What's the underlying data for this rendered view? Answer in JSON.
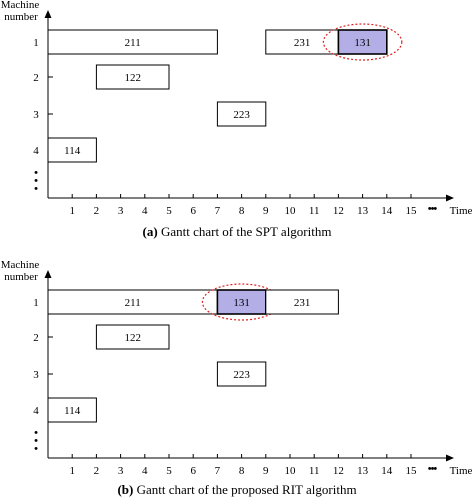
{
  "chart_data": [
    {
      "type": "gantt",
      "y_title": [
        "Machine",
        "number"
      ],
      "x_title": "Time",
      "x_ticks": [
        "1",
        "2",
        "3",
        "4",
        "5",
        "6",
        "7",
        "8",
        "9",
        "10",
        "11",
        "12",
        "13",
        "14",
        "15"
      ],
      "x_more": "•••",
      "machines": [
        "1",
        "2",
        "3",
        "4"
      ],
      "more_machines": "•\n•\n•",
      "bars": [
        {
          "machine": "1",
          "start": 0,
          "end": 7,
          "label": "211",
          "highlight": false
        },
        {
          "machine": "1",
          "start": 9,
          "end": 12,
          "label": "231",
          "highlight": false
        },
        {
          "machine": "1",
          "start": 12,
          "end": 14,
          "label": "131",
          "highlight": true
        },
        {
          "machine": "2",
          "start": 2,
          "end": 5,
          "label": "122",
          "highlight": false
        },
        {
          "machine": "3",
          "start": 7,
          "end": 9,
          "label": "223",
          "highlight": false
        },
        {
          "machine": "4",
          "start": 0,
          "end": 2,
          "label": "114",
          "highlight": false
        }
      ],
      "caption_prefix": "(a)",
      "caption_text": " Gantt chart of the SPT algorithm"
    },
    {
      "type": "gantt",
      "y_title": [
        "Machine",
        "number"
      ],
      "x_title": "Time",
      "x_ticks": [
        "1",
        "2",
        "3",
        "4",
        "5",
        "6",
        "7",
        "8",
        "9",
        "10",
        "11",
        "12",
        "13",
        "14",
        "15"
      ],
      "x_more": "•••",
      "machines": [
        "1",
        "2",
        "3",
        "4"
      ],
      "more_machines": "•\n•\n•",
      "bars": [
        {
          "machine": "1",
          "start": 0,
          "end": 7,
          "label": "211",
          "highlight": false
        },
        {
          "machine": "1",
          "start": 7,
          "end": 9,
          "label": "131",
          "highlight": true
        },
        {
          "machine": "1",
          "start": 9,
          "end": 12,
          "label": "231",
          "highlight": false
        },
        {
          "machine": "2",
          "start": 2,
          "end": 5,
          "label": "122",
          "highlight": false
        },
        {
          "machine": "3",
          "start": 7,
          "end": 9,
          "label": "223",
          "highlight": false
        },
        {
          "machine": "4",
          "start": 0,
          "end": 2,
          "label": "114",
          "highlight": false
        }
      ],
      "caption_prefix": "(b)",
      "caption_text": " Gantt chart of the proposed RIT algorithm"
    }
  ],
  "colors": {
    "highlight_fill": "#b3aee6",
    "ellipse_stroke": "#e02020",
    "axis": "#000000"
  }
}
